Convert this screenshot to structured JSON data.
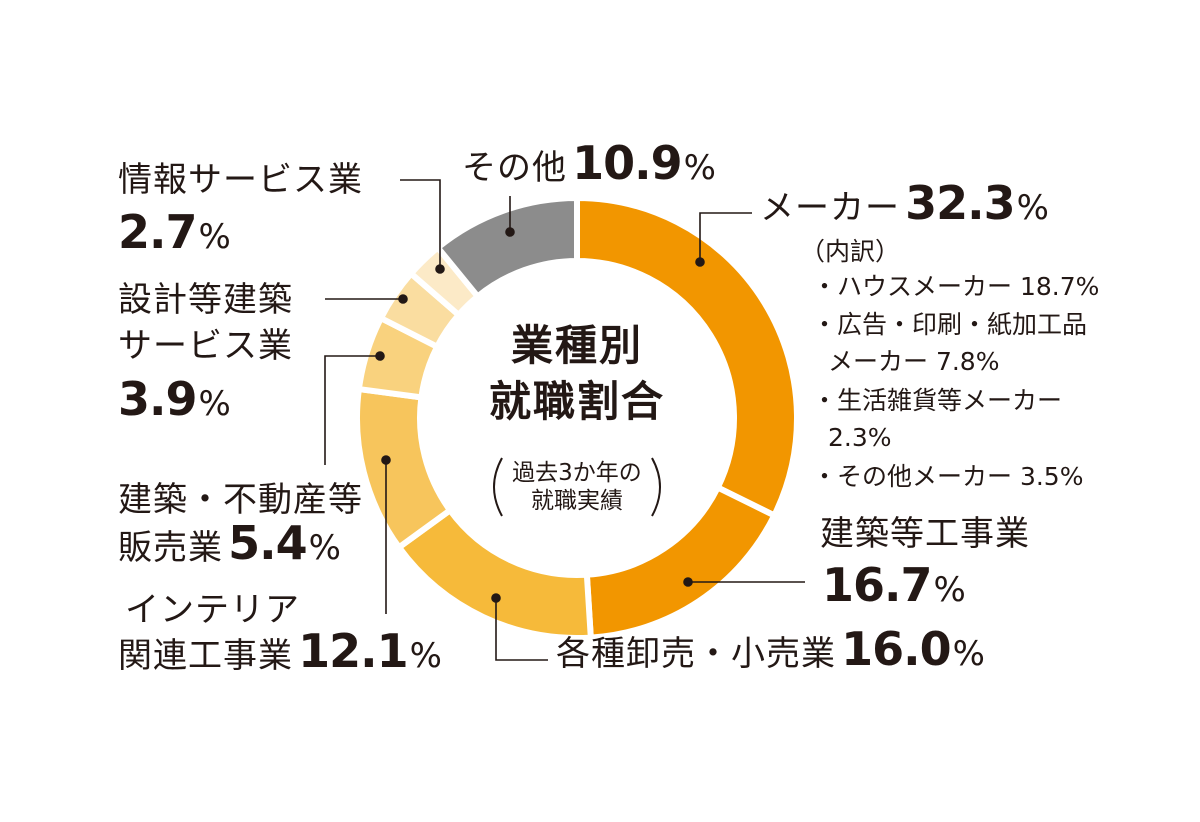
{
  "chart_data": {
    "type": "pie",
    "title": "業種別就職割合",
    "subtitle": "過去3か年の就職実績",
    "slices": [
      {
        "label": "メーカー",
        "value": 32.3,
        "color": "#F29600",
        "breakdown_title": "（内訳）",
        "breakdown": [
          "・ハウスメーカー 18.7%",
          "・広告・印刷・紙加工品",
          "メーカー 7.8%",
          "・生活雑貨等メーカー",
          "2.3%",
          "・その他メーカー 3.5%"
        ]
      },
      {
        "label": "建築等工事業",
        "value": 16.7,
        "color": "#F29600"
      },
      {
        "label": "各種卸売・小売業",
        "value": 16.0,
        "color": "#F6BA3A"
      },
      {
        "label": "インテリア関連工事業",
        "value": 12.1,
        "color": "#F7C55C"
      },
      {
        "label": "建築・不動産等販売業",
        "value": 5.4,
        "color": "#F9D27E"
      },
      {
        "label": "設計等建築サービス業",
        "value": 3.9,
        "color": "#FADDA0"
      },
      {
        "label": "情報サービス業",
        "value": 2.7,
        "color": "#FCEAC7"
      },
      {
        "label": "その他",
        "value": 10.9,
        "color": "#8C8C8C"
      }
    ]
  },
  "labels": {
    "maker": {
      "name": "メーカー",
      "value": "32.3",
      "unit": "%"
    },
    "construction": {
      "name": "建築等工事業",
      "value": "16.7",
      "unit": "%"
    },
    "retail": {
      "name": "各種卸売・小売業",
      "value": "16.0",
      "unit": "%"
    },
    "interior": {
      "name_line1": "インテリア",
      "name_line2": "関連工事業",
      "value": "12.1",
      "unit": "%"
    },
    "realestate": {
      "name_line1": "建築・不動産等",
      "name_line2": "販売業",
      "value": "5.4",
      "unit": "%"
    },
    "design": {
      "name_line1": "設計等建築",
      "name_line2": "サービス業",
      "value": "3.9",
      "unit": "%"
    },
    "info": {
      "name": "情報サービス業",
      "value": "2.7",
      "unit": "%"
    },
    "other": {
      "name": "その他",
      "value": "10.9",
      "unit": "%"
    }
  },
  "center": {
    "title_line1": "業種別",
    "title_line2": "就職割合",
    "note_line1": "過去3か年の",
    "note_line2": "就職実績"
  }
}
